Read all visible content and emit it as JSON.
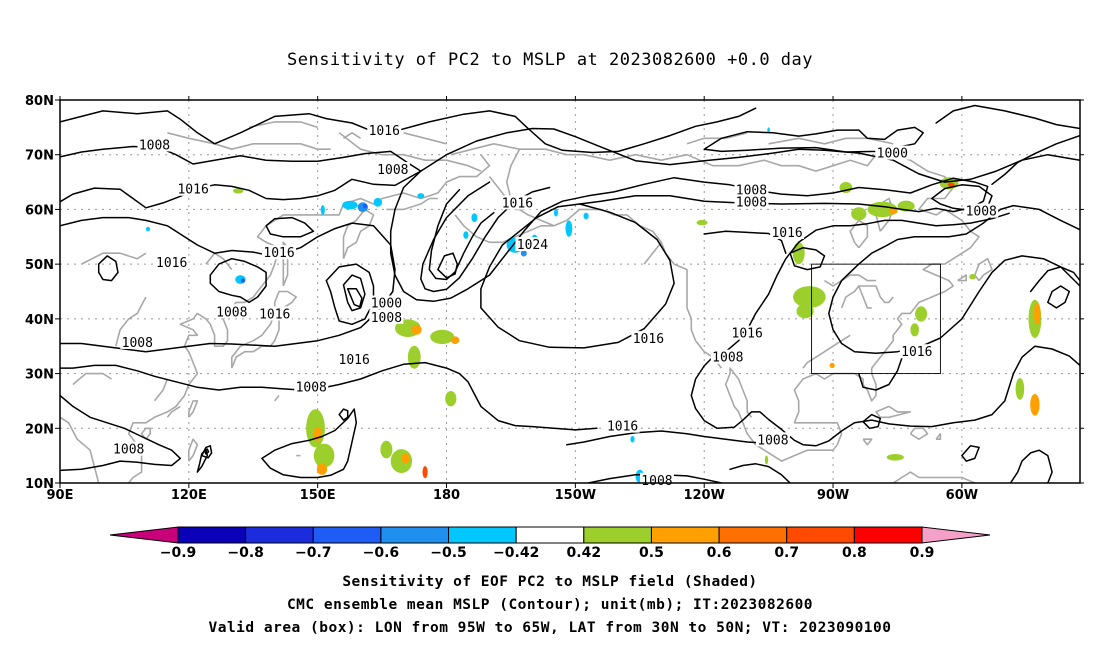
{
  "title": "Sensitivity of PC2 to MSLP at 2023082600 +0.0 day",
  "map": {
    "lat_labels": [
      "80N",
      "70N",
      "60N",
      "50N",
      "40N",
      "30N",
      "20N",
      "10N"
    ],
    "lon_labels": [
      "90E",
      "120E",
      "150E",
      "180",
      "150W",
      "120W",
      "90W",
      "60W"
    ],
    "contour_labels": [
      {
        "text": "1016",
        "lon": 165.5,
        "lat": 74.3
      },
      {
        "text": "1008",
        "lon": 112,
        "lat": 71.7
      },
      {
        "text": "1008",
        "lon": 167.5,
        "lat": 67.2
      },
      {
        "text": "1000",
        "lon": 283.8,
        "lat": 70.2
      },
      {
        "text": "1016",
        "lon": 121,
        "lat": 63.6
      },
      {
        "text": "1008",
        "lon": 251,
        "lat": 63.5
      },
      {
        "text": "1008",
        "lon": 251,
        "lat": 61.3
      },
      {
        "text": "1016",
        "lon": 196.5,
        "lat": 61.1
      },
      {
        "text": "1008",
        "lon": 304.5,
        "lat": 59.6
      },
      {
        "text": "1016",
        "lon": 259.3,
        "lat": 55.7
      },
      {
        "text": "1024",
        "lon": 200,
        "lat": 53.5
      },
      {
        "text": "1016",
        "lon": 141,
        "lat": 52.0
      },
      {
        "text": "1016",
        "lon": 116,
        "lat": 50.2
      },
      {
        "text": "1000",
        "lon": 166,
        "lat": 42.8
      },
      {
        "text": "1008",
        "lon": 130,
        "lat": 41.2
      },
      {
        "text": "1016",
        "lon": 140,
        "lat": 40.8
      },
      {
        "text": "1008",
        "lon": 166,
        "lat": 40.2
      },
      {
        "text": "1016",
        "lon": 227,
        "lat": 36.3
      },
      {
        "text": "1016",
        "lon": 250,
        "lat": 37.3
      },
      {
        "text": "1008",
        "lon": 108,
        "lat": 35.6
      },
      {
        "text": "1016",
        "lon": 158.5,
        "lat": 32.5
      },
      {
        "text": "1008",
        "lon": 245.5,
        "lat": 32.9
      },
      {
        "text": "1016",
        "lon": 289.5,
        "lat": 33.9
      },
      {
        "text": "1008",
        "lon": 148.5,
        "lat": 27.5
      },
      {
        "text": "1016",
        "lon": 221,
        "lat": 20.3
      },
      {
        "text": "1008",
        "lon": 256,
        "lat": 17.8
      },
      {
        "text": "1008",
        "lon": 106,
        "lat": 16.1
      },
      {
        "text": "1008",
        "lon": 229,
        "lat": 10.4
      }
    ],
    "valid_box": {
      "lon_min": 265,
      "lon_max": 295,
      "lat_min": 30,
      "lat_max": 50
    },
    "shaded_patches": [
      {
        "lon": 171,
        "lat": 38.3,
        "rx": 3.0,
        "ry": 1.6,
        "level": 0.5
      },
      {
        "lon": 173,
        "lat": 38.0,
        "rx": 1.2,
        "ry": 0.9,
        "level": 0.6
      },
      {
        "lon": 179,
        "lat": 36.7,
        "rx": 2.8,
        "ry": 1.3,
        "level": 0.5
      },
      {
        "lon": 182,
        "lat": 36.1,
        "rx": 1.0,
        "ry": 0.7,
        "level": 0.6
      },
      {
        "lon": 172.5,
        "lat": 33.0,
        "rx": 1.5,
        "ry": 2.1,
        "level": 0.5
      },
      {
        "lon": 181.0,
        "lat": 25.4,
        "rx": 1.3,
        "ry": 1.4,
        "level": 0.5
      },
      {
        "lon": 169.5,
        "lat": 14.0,
        "rx": 2.5,
        "ry": 2.2,
        "level": 0.5
      },
      {
        "lon": 170.5,
        "lat": 14.5,
        "rx": 1.0,
        "ry": 0.9,
        "level": 0.6
      },
      {
        "lon": 175,
        "lat": 12.0,
        "rx": 0.6,
        "ry": 1.1,
        "level": 0.7
      },
      {
        "lon": 166.0,
        "lat": 16.1,
        "rx": 1.4,
        "ry": 1.6,
        "level": 0.5
      },
      {
        "lon": 149.5,
        "lat": 20.0,
        "rx": 2.2,
        "ry": 3.5,
        "level": 0.5
      },
      {
        "lon": 150.0,
        "lat": 19.0,
        "rx": 0.9,
        "ry": 1.3,
        "level": 0.6
      },
      {
        "lon": 151.5,
        "lat": 15.0,
        "rx": 2.4,
        "ry": 2.2,
        "level": 0.5
      },
      {
        "lon": 151.0,
        "lat": 12.5,
        "rx": 1.2,
        "ry": 1.0,
        "level": 0.6
      },
      {
        "lon": 131.5,
        "lat": 63.4,
        "rx": 1.2,
        "ry": 0.5,
        "level": 0.5
      },
      {
        "lon": 239.5,
        "lat": 57.6,
        "rx": 1.3,
        "ry": 0.5,
        "level": 0.5
      },
      {
        "lon": 262,
        "lat": 52.0,
        "rx": 1.4,
        "ry": 2.0,
        "level": 0.5
      },
      {
        "lon": 264.5,
        "lat": 44.0,
        "rx": 3.8,
        "ry": 2.0,
        "level": 0.5
      },
      {
        "lon": 263.5,
        "lat": 41.4,
        "rx": 2.0,
        "ry": 1.3,
        "level": 0.5
      },
      {
        "lon": 273,
        "lat": 64.0,
        "rx": 1.5,
        "ry": 1.0,
        "level": 0.5
      },
      {
        "lon": 276,
        "lat": 59.2,
        "rx": 1.8,
        "ry": 1.2,
        "level": 0.5
      },
      {
        "lon": 281.5,
        "lat": 60.0,
        "rx": 3.5,
        "ry": 1.4,
        "level": 0.5
      },
      {
        "lon": 284.0,
        "lat": 59.7,
        "rx": 1.0,
        "ry": 0.6,
        "level": 0.6
      },
      {
        "lon": 287,
        "lat": 60.6,
        "rx": 2.0,
        "ry": 1.0,
        "level": 0.5
      },
      {
        "lon": 297,
        "lat": 64.8,
        "rx": 2.2,
        "ry": 1.1,
        "level": 0.5
      },
      {
        "lon": 297.5,
        "lat": 64.5,
        "rx": 0.8,
        "ry": 0.4,
        "level": 0.7
      },
      {
        "lon": 290.5,
        "lat": 40.9,
        "rx": 1.4,
        "ry": 1.4,
        "level": 0.5
      },
      {
        "lon": 289.0,
        "lat": 38.0,
        "rx": 1.0,
        "ry": 1.2,
        "level": 0.5
      },
      {
        "lon": 269.8,
        "lat": 31.5,
        "rx": 0.6,
        "ry": 0.5,
        "level": 0.6
      },
      {
        "lon": 317,
        "lat": 40.0,
        "rx": 1.5,
        "ry": 3.5,
        "level": 0.5
      },
      {
        "lon": 317.5,
        "lat": 41.0,
        "rx": 0.8,
        "ry": 2.0,
        "level": 0.6
      },
      {
        "lon": 313.5,
        "lat": 27.2,
        "rx": 1.0,
        "ry": 2.0,
        "level": 0.5
      },
      {
        "lon": 317,
        "lat": 24.3,
        "rx": 1.1,
        "ry": 2.0,
        "level": 0.6
      },
      {
        "lon": 284.5,
        "lat": 14.7,
        "rx": 2.0,
        "ry": 0.6,
        "level": 0.5
      },
      {
        "lon": 254.5,
        "lat": 14.2,
        "rx": 0.4,
        "ry": 0.8,
        "level": 0.5
      },
      {
        "lon": 302.5,
        "lat": 47.7,
        "rx": 0.8,
        "ry": 0.5,
        "level": 0.5
      },
      {
        "lon": 151.2,
        "lat": 59.9,
        "rx": 0.5,
        "ry": 0.9,
        "level": -0.42
      },
      {
        "lon": 157.5,
        "lat": 60.8,
        "rx": 1.8,
        "ry": 0.8,
        "level": -0.42
      },
      {
        "lon": 160.5,
        "lat": 60.4,
        "rx": 1.2,
        "ry": 0.9,
        "level": -0.5
      },
      {
        "lon": 161.0,
        "lat": 60.6,
        "rx": 0.5,
        "ry": 0.4,
        "level": -0.6
      },
      {
        "lon": 164.0,
        "lat": 61.3,
        "rx": 1.0,
        "ry": 0.8,
        "level": -0.42
      },
      {
        "lon": 174.0,
        "lat": 62.5,
        "rx": 0.8,
        "ry": 0.5,
        "level": -0.42
      },
      {
        "lon": 184.5,
        "lat": 55.3,
        "rx": 0.6,
        "ry": 0.7,
        "level": -0.42
      },
      {
        "lon": 186.5,
        "lat": 58.5,
        "rx": 0.7,
        "ry": 0.8,
        "level": -0.42
      },
      {
        "lon": 196.0,
        "lat": 53.5,
        "rx": 2.0,
        "ry": 1.4,
        "level": -0.42
      },
      {
        "lon": 198.0,
        "lat": 52.0,
        "rx": 0.7,
        "ry": 0.6,
        "level": -0.5
      },
      {
        "lon": 200.5,
        "lat": 54.6,
        "rx": 0.7,
        "ry": 0.8,
        "level": -0.42
      },
      {
        "lon": 205.5,
        "lat": 59.4,
        "rx": 0.5,
        "ry": 0.7,
        "level": -0.42
      },
      {
        "lon": 208.5,
        "lat": 56.5,
        "rx": 0.8,
        "ry": 1.5,
        "level": -0.42
      },
      {
        "lon": 212.5,
        "lat": 58.8,
        "rx": 0.6,
        "ry": 0.6,
        "level": -0.42
      },
      {
        "lon": 132.0,
        "lat": 47.2,
        "rx": 1.2,
        "ry": 0.8,
        "level": -0.42
      },
      {
        "lon": 132.6,
        "lat": 47.0,
        "rx": 0.5,
        "ry": 0.4,
        "level": -0.6
      },
      {
        "lon": 110.5,
        "lat": 56.4,
        "rx": 0.5,
        "ry": 0.4,
        "level": -0.42
      },
      {
        "lon": 225.0,
        "lat": 11.2,
        "rx": 1.0,
        "ry": 1.2,
        "level": -0.42
      },
      {
        "lon": 222.7,
        "lat": 8.5,
        "rx": 0.7,
        "ry": 1.2,
        "level": -0.5
      },
      {
        "lon": 223.3,
        "lat": 18.0,
        "rx": 0.5,
        "ry": 0.6,
        "level": -0.42
      },
      {
        "lon": 255.0,
        "lat": 74.5,
        "rx": 0.3,
        "ry": 0.5,
        "level": -0.42
      }
    ]
  },
  "colorbar": {
    "levels": [
      {
        "label": "-0.9",
        "color": "#0a00b8"
      },
      {
        "label": "-0.8",
        "color": "#1a2cdc"
      },
      {
        "label": "-0.7",
        "color": "#1e5cf5"
      },
      {
        "label": "-0.6",
        "color": "#1f8ff0"
      },
      {
        "label": "-0.5",
        "color": "#00c8ff"
      },
      {
        "label": "-0.42",
        "color": "#ffffff"
      },
      {
        "label": "0.42",
        "color": "#9ccf2c"
      },
      {
        "label": "0.5",
        "color": "#ffa000"
      },
      {
        "label": "0.6",
        "color": "#ff7000"
      },
      {
        "label": "0.7",
        "color": "#ff4a00"
      },
      {
        "label": "0.8",
        "color": "#ff0000"
      },
      {
        "label": "0.9",
        "color": ""
      }
    ],
    "low_extend_color": "#c8007a",
    "high_extend_color": "#f5a0c8"
  },
  "captions": [
    "Sensitivity of EOF PC2 to MSLP field (Shaded)",
    "CMC ensemble mean MSLP (Contour); unit(mb); IT:2023082600",
    "Valid area (box): LON from 95W to 65W, LAT from 30N to 50N; VT: 2023090100"
  ],
  "colors": {
    "coast": "#a8a8a8",
    "contour": "#000000",
    "grid": "#9a9a9a",
    "neg_shade": "#00c8ff",
    "pos_low": "#9ccf2c",
    "pos_mid": "#ffa000",
    "pos_high": "#ff4a00"
  }
}
